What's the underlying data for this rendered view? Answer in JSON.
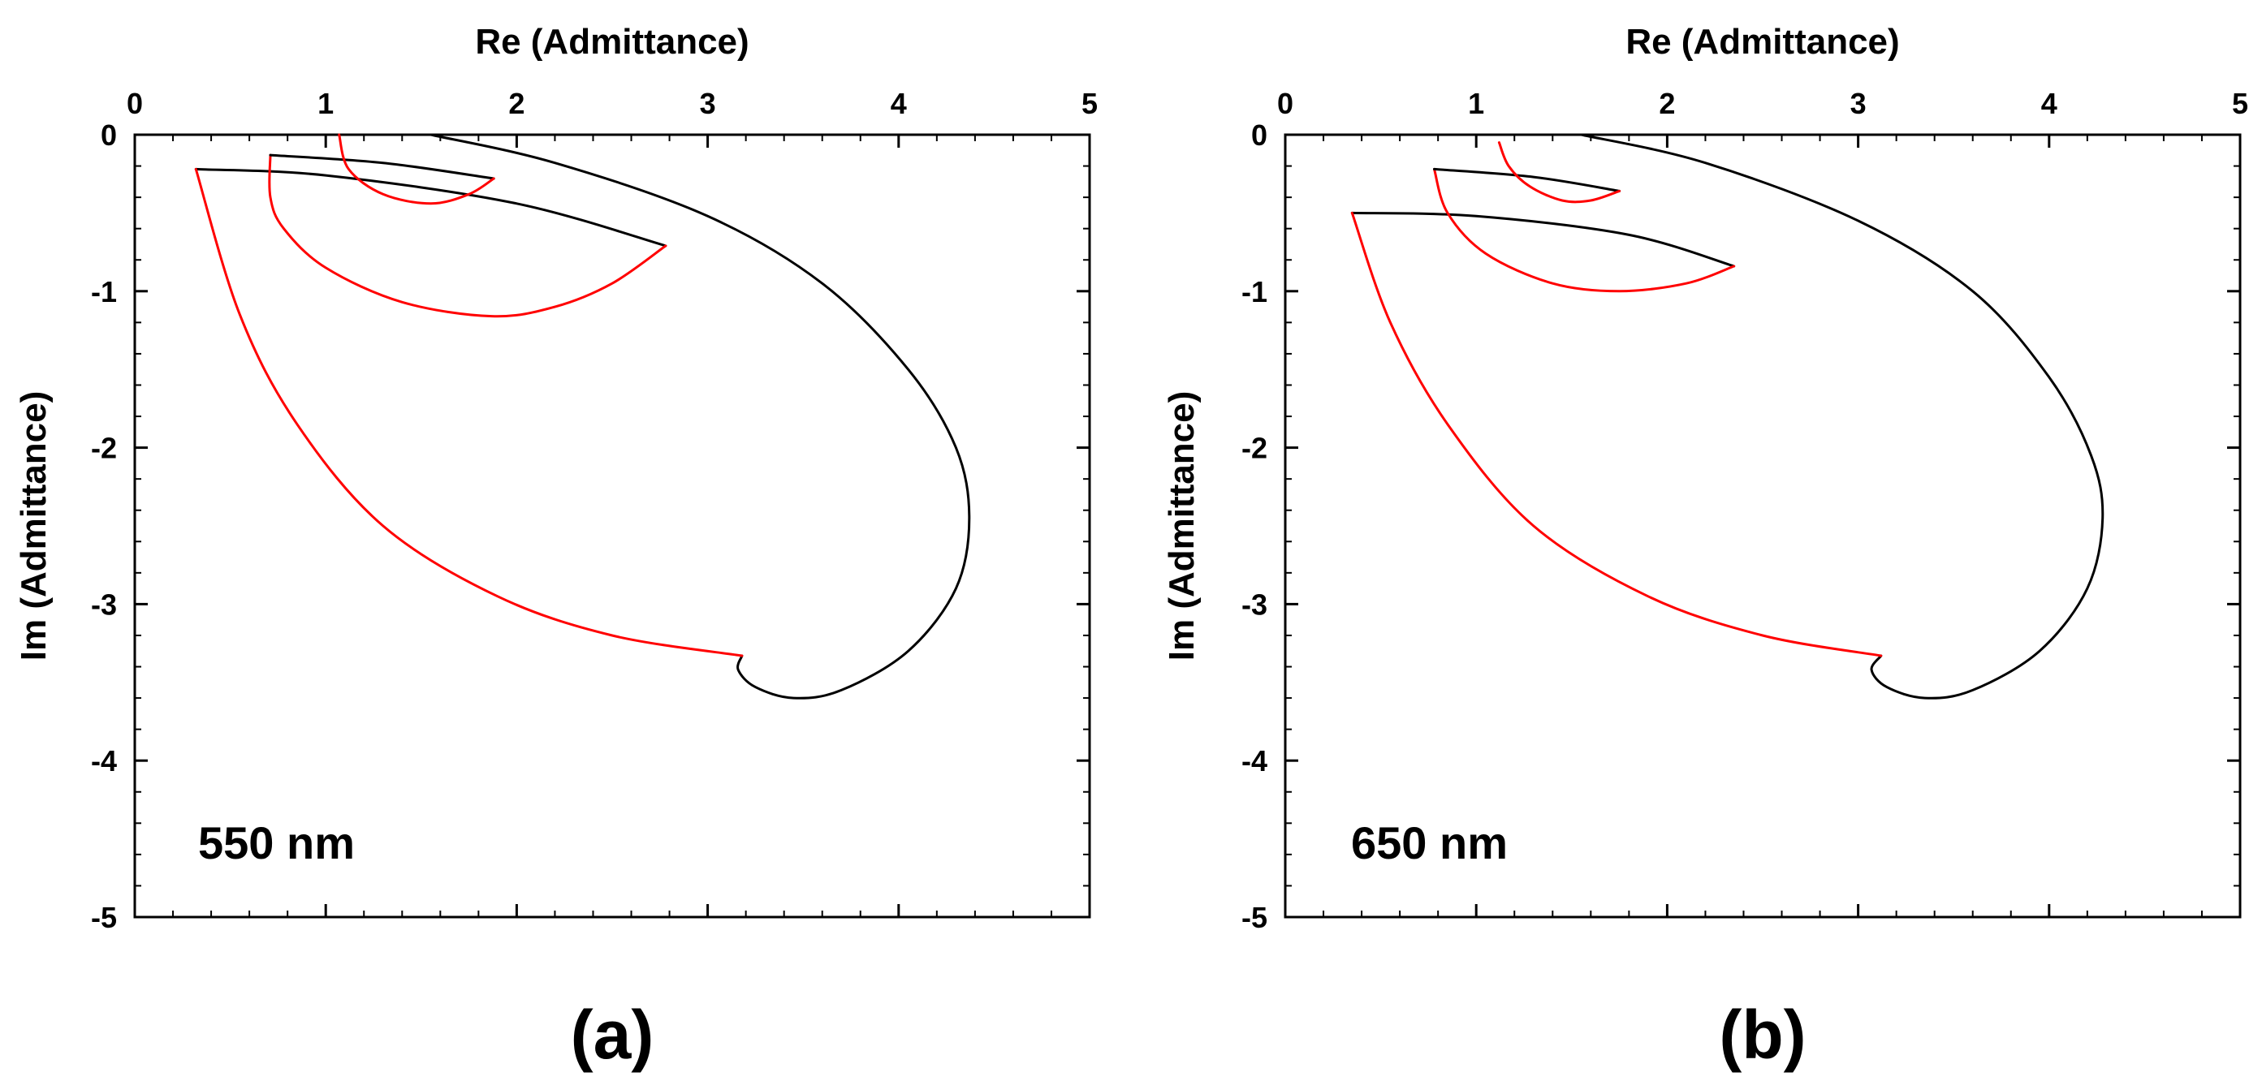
{
  "chart_data": [
    {
      "type": "line",
      "panel_label": "(a)",
      "annotation": "550 nm",
      "xlabel": "Re (Admittance)",
      "ylabel": "Im (Admittance)",
      "xlim": [
        0,
        5
      ],
      "ylim": [
        -5,
        0
      ],
      "xticks": [
        0,
        1,
        2,
        3,
        4,
        5
      ],
      "yticks": [
        0,
        -1,
        -2,
        -3,
        -4,
        -5
      ],
      "x_axis_position": "top",
      "series": [
        {
          "name": "black-1",
          "color": "#000000",
          "points": [
            [
              0.32,
              -0.22
            ],
            [
              1.0,
              -0.26
            ],
            [
              2.0,
              -0.44
            ],
            [
              2.78,
              -0.71
            ]
          ]
        },
        {
          "name": "red-1",
          "color": "#ff0000",
          "points": [
            [
              2.78,
              -0.71
            ],
            [
              2.5,
              -0.95
            ],
            [
              2.2,
              -1.1
            ],
            [
              1.87,
              -1.16
            ],
            [
              1.4,
              -1.07
            ],
            [
              1.0,
              -0.85
            ],
            [
              0.78,
              -0.6
            ],
            [
              0.71,
              -0.4
            ],
            [
              0.71,
              -0.13
            ]
          ]
        },
        {
          "name": "black-2",
          "color": "#000000",
          "points": [
            [
              0.71,
              -0.13
            ],
            [
              1.3,
              -0.18
            ],
            [
              1.88,
              -0.28
            ]
          ]
        },
        {
          "name": "red-2",
          "color": "#ff0000",
          "points": [
            [
              1.88,
              -0.28
            ],
            [
              1.75,
              -0.38
            ],
            [
              1.55,
              -0.44
            ],
            [
              1.3,
              -0.38
            ],
            [
              1.12,
              -0.22
            ],
            [
              1.07,
              0.0
            ]
          ]
        },
        {
          "name": "black-3",
          "color": "#000000",
          "points": [
            [
              1.55,
              0.0
            ],
            [
              2.2,
              -0.18
            ],
            [
              3.0,
              -0.52
            ],
            [
              3.6,
              -0.95
            ],
            [
              4.05,
              -1.5
            ],
            [
              4.3,
              -2.0
            ],
            [
              4.37,
              -2.45
            ],
            [
              4.3,
              -2.9
            ],
            [
              4.05,
              -3.3
            ],
            [
              3.7,
              -3.55
            ],
            [
              3.45,
              -3.6
            ],
            [
              3.25,
              -3.53
            ],
            [
              3.16,
              -3.42
            ],
            [
              3.18,
              -3.33
            ]
          ]
        },
        {
          "name": "red-3",
          "color": "#ff0000",
          "points": [
            [
              3.18,
              -3.33
            ],
            [
              2.5,
              -3.2
            ],
            [
              1.9,
              -2.95
            ],
            [
              1.3,
              -2.5
            ],
            [
              0.85,
              -1.85
            ],
            [
              0.55,
              -1.15
            ],
            [
              0.32,
              -0.22
            ]
          ]
        }
      ]
    },
    {
      "type": "line",
      "panel_label": "(b)",
      "annotation": "650 nm",
      "xlabel": "Re (Admittance)",
      "ylabel": "Im (Admittance)",
      "xlim": [
        0,
        5
      ],
      "ylim": [
        -5,
        0
      ],
      "xticks": [
        0,
        1,
        2,
        3,
        4,
        5
      ],
      "yticks": [
        0,
        -1,
        -2,
        -3,
        -4,
        -5
      ],
      "x_axis_position": "top",
      "series": [
        {
          "name": "black-1",
          "color": "#000000",
          "points": [
            [
              0.35,
              -0.5
            ],
            [
              1.0,
              -0.52
            ],
            [
              1.8,
              -0.64
            ],
            [
              2.35,
              -0.84
            ]
          ]
        },
        {
          "name": "red-1",
          "color": "#ff0000",
          "points": [
            [
              2.35,
              -0.84
            ],
            [
              2.1,
              -0.95
            ],
            [
              1.75,
              -1.0
            ],
            [
              1.4,
              -0.95
            ],
            [
              1.05,
              -0.76
            ],
            [
              0.85,
              -0.5
            ],
            [
              0.78,
              -0.22
            ]
          ]
        },
        {
          "name": "black-2",
          "color": "#000000",
          "points": [
            [
              0.78,
              -0.22
            ],
            [
              1.3,
              -0.27
            ],
            [
              1.75,
              -0.36
            ]
          ]
        },
        {
          "name": "red-2",
          "color": "#ff0000",
          "points": [
            [
              1.75,
              -0.36
            ],
            [
              1.6,
              -0.42
            ],
            [
              1.45,
              -0.42
            ],
            [
              1.28,
              -0.33
            ],
            [
              1.17,
              -0.2
            ],
            [
              1.12,
              -0.05
            ]
          ]
        },
        {
          "name": "black-3",
          "color": "#000000",
          "points": [
            [
              1.55,
              0.0
            ],
            [
              2.2,
              -0.18
            ],
            [
              3.0,
              -0.55
            ],
            [
              3.6,
              -1.0
            ],
            [
              4.0,
              -1.55
            ],
            [
              4.22,
              -2.05
            ],
            [
              4.28,
              -2.45
            ],
            [
              4.2,
              -2.9
            ],
            [
              3.95,
              -3.3
            ],
            [
              3.6,
              -3.55
            ],
            [
              3.35,
              -3.6
            ],
            [
              3.15,
              -3.53
            ],
            [
              3.07,
              -3.42
            ],
            [
              3.12,
              -3.33
            ]
          ]
        },
        {
          "name": "red-3",
          "color": "#ff0000",
          "points": [
            [
              3.12,
              -3.33
            ],
            [
              2.5,
              -3.2
            ],
            [
              1.9,
              -2.95
            ],
            [
              1.3,
              -2.5
            ],
            [
              0.85,
              -1.85
            ],
            [
              0.55,
              -1.2
            ],
            [
              0.35,
              -0.5
            ]
          ]
        }
      ]
    }
  ]
}
